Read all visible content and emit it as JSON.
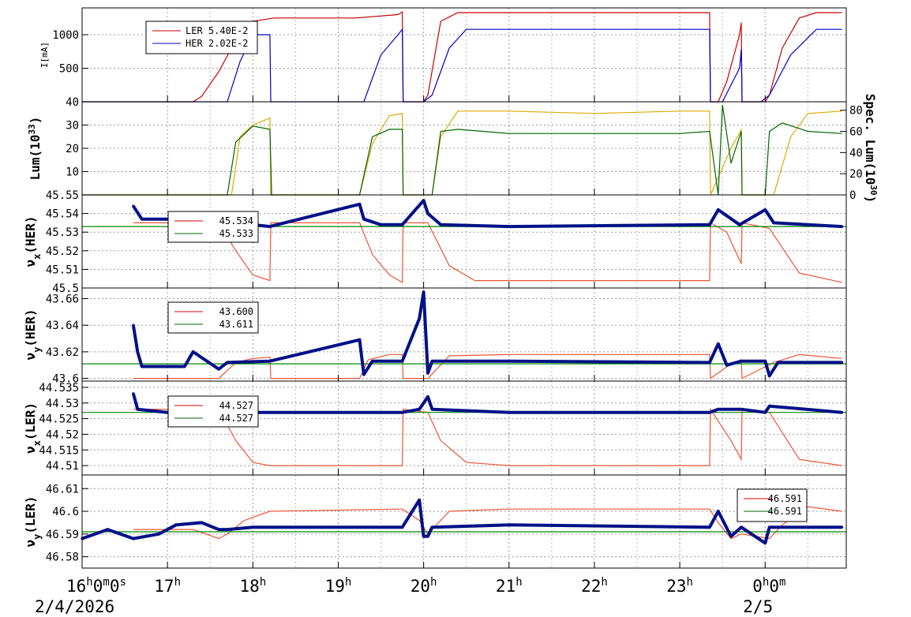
{
  "chart_data": {
    "type": "line",
    "x_axis": {
      "range_hours": [
        16.0,
        24.95
      ],
      "ticks": [
        {
          "h": 16,
          "label": "16h0m0s"
        },
        {
          "h": 17,
          "label": "17h"
        },
        {
          "h": 18,
          "label": "18h"
        },
        {
          "h": 19,
          "label": "19h"
        },
        {
          "h": 20,
          "label": "20h"
        },
        {
          "h": 21,
          "label": "21h"
        },
        {
          "h": 22,
          "label": "22h"
        },
        {
          "h": 23,
          "label": "23h"
        },
        {
          "h": 24,
          "label": "0h0m"
        }
      ],
      "date_labels": [
        {
          "h": 16,
          "label": "2/4/2026"
        },
        {
          "h": 24,
          "label": "2/5"
        }
      ]
    },
    "panels": [
      {
        "id": "current",
        "ylabel": "I[mA]",
        "ylim": [
          0,
          1400
        ],
        "yticks": [
          500,
          1000
        ],
        "legend": [
          {
            "label": "LER  5.40E-2",
            "color": "#cc0000"
          },
          {
            "label": "HER  2.02E-2",
            "color": "#0000cc"
          }
        ],
        "series": [
          {
            "name": "LER",
            "color": "#cc0000",
            "x": [
              16.0,
              16.6,
              17.3,
              17.4,
              17.6,
              17.75,
              18.0,
              18.25,
              19.2,
              19.7,
              19.75,
              19.76,
              19.95,
              20.0,
              20.05,
              20.2,
              20.4,
              21.0,
              22.0,
              23.0,
              23.35,
              23.36,
              23.45,
              23.55,
              23.7,
              23.72,
              23.73,
              23.95,
              24.0,
              24.05,
              24.2,
              24.4,
              24.6,
              24.9
            ],
            "values": [
              0,
              0,
              0,
              80,
              450,
              800,
              1200,
              1250,
              1250,
              1300,
              1340,
              0,
              0,
              0,
              100,
              1200,
              1330,
              1330,
              1330,
              1330,
              1330,
              0,
              0,
              300,
              1000,
              1180,
              0,
              0,
              0,
              100,
              800,
              1250,
              1330,
              1330
            ]
          },
          {
            "name": "HER",
            "color": "#0000cc",
            "x": [
              16.0,
              16.6,
              17.7,
              17.85,
              18.0,
              18.2,
              18.21,
              19.3,
              19.5,
              19.7,
              19.75,
              19.76,
              20.0,
              20.1,
              20.3,
              20.5,
              23.35,
              23.36,
              23.5,
              23.7,
              23.72,
              23.73,
              23.95,
              24.05,
              24.3,
              24.6,
              24.9
            ],
            "values": [
              0,
              0,
              0,
              600,
              1000,
              1000,
              0,
              0,
              700,
              1000,
              1080,
              0,
              0,
              100,
              800,
              1080,
              1080,
              0,
              0,
              500,
              780,
              0,
              0,
              100,
              700,
              1080,
              1080
            ]
          }
        ]
      },
      {
        "id": "lum",
        "ylabel": "Lum(10^33)",
        "ylabel_right": "Spec. Lum(10^30)",
        "ylim": [
          0,
          40
        ],
        "yticks": [
          10,
          20,
          30,
          40
        ],
        "ylim_right": [
          0,
          88
        ],
        "yticks_right": [
          0,
          20,
          40,
          60,
          80
        ],
        "series": [
          {
            "name": "Lum",
            "color": "#ddaa00",
            "x": [
              16.0,
              17.75,
              17.85,
              18.0,
              18.2,
              18.21,
              19.25,
              19.4,
              19.6,
              19.75,
              19.76,
              20.1,
              20.2,
              20.4,
              21.0,
              22.0,
              23.0,
              23.35,
              23.36,
              23.6,
              23.72,
              23.73,
              24.1,
              24.3,
              24.5,
              24.9
            ],
            "values": [
              0,
              0,
              25,
              30,
              33,
              0,
              0,
              22,
              34,
              35,
              0,
              0,
              25,
              36,
              36,
              35,
              36,
              36,
              0,
              20,
              28,
              0,
              0,
              25,
              35,
              36
            ]
          },
          {
            "name": "Spec. Lum",
            "color": "#006600",
            "axis": "right",
            "x": [
              16.0,
              17.7,
              17.8,
              18.0,
              18.2,
              18.22,
              19.25,
              19.4,
              19.6,
              19.75,
              19.76,
              20.1,
              20.2,
              20.4,
              21.0,
              22.0,
              23.0,
              23.35,
              23.45,
              23.5,
              23.6,
              23.72,
              23.73,
              24.0,
              24.05,
              24.2,
              24.5,
              24.9
            ],
            "values": [
              0,
              0,
              50,
              65,
              62,
              0,
              0,
              55,
              62,
              62,
              0,
              0,
              60,
              62,
              58,
              58,
              58,
              60,
              0,
              85,
              30,
              60,
              0,
              0,
              60,
              68,
              60,
              58
            ]
          }
        ]
      },
      {
        "id": "nux_her",
        "ylabel": "νx(HER)",
        "ylim": [
          45.5,
          45.55
        ],
        "yticks": [
          45.5,
          45.51,
          45.52,
          45.53,
          45.54,
          45.55
        ],
        "legend": [
          {
            "label": "45.534",
            "color": "#cc0000"
          },
          {
            "label": "45.533",
            "color": "#006600"
          }
        ],
        "series": [
          {
            "name": "set red",
            "color": "#ee5533",
            "x": [
              16.6,
              17.6,
              17.8,
              18.0,
              18.2,
              18.21,
              19.25,
              19.4,
              19.6,
              19.75,
              19.76,
              20.05,
              20.3,
              20.6,
              21.0,
              23.35,
              23.36,
              23.55,
              23.72,
              23.73,
              24.05,
              24.4,
              24.9
            ],
            "values": [
              45.535,
              45.535,
              45.52,
              45.507,
              45.504,
              45.535,
              45.535,
              45.518,
              45.507,
              45.503,
              45.535,
              45.535,
              45.512,
              45.504,
              45.504,
              45.504,
              45.535,
              45.53,
              45.513,
              45.535,
              45.532,
              45.508,
              45.503
            ]
          },
          {
            "name": "green",
            "color": "#008800",
            "x": [
              16.0,
              24.95
            ],
            "values": [
              45.533,
              45.533
            ]
          },
          {
            "name": "meas",
            "color": "#001188",
            "x": [
              16.6,
              16.7,
              17.6,
              18.0,
              18.2,
              19.25,
              19.3,
              19.5,
              19.75,
              20.0,
              20.05,
              20.2,
              21.0,
              23.35,
              23.45,
              23.7,
              24.0,
              24.1,
              24.9
            ],
            "values": [
              45.544,
              45.537,
              45.537,
              45.534,
              45.533,
              45.545,
              45.537,
              45.534,
              45.534,
              45.547,
              45.54,
              45.534,
              45.533,
              45.534,
              45.542,
              45.534,
              45.542,
              45.535,
              45.533
            ]
          }
        ]
      },
      {
        "id": "nuy_her",
        "ylabel": "νy(HER)",
        "ylim": [
          43.598,
          43.668
        ],
        "yticks": [
          43.6,
          43.62,
          43.64,
          43.66
        ],
        "legend": [
          {
            "label": "43.600",
            "color": "#cc0000"
          },
          {
            "label": "43.611",
            "color": "#006600"
          }
        ],
        "series": [
          {
            "name": "set red",
            "color": "#ee5533",
            "x": [
              16.6,
              17.6,
              17.8,
              18.0,
              18.2,
              18.21,
              19.25,
              19.35,
              19.6,
              19.75,
              19.76,
              20.05,
              20.3,
              21.0,
              23.35,
              23.36,
              23.6,
              23.72,
              23.73,
              24.1,
              24.4,
              24.9
            ],
            "values": [
              43.6,
              43.6,
              43.612,
              43.615,
              43.616,
              43.6,
              43.6,
              43.614,
              43.618,
              43.618,
              43.6,
              43.6,
              43.617,
              43.618,
              43.618,
              43.6,
              43.611,
              43.614,
              43.6,
              43.612,
              43.618,
              43.615
            ]
          },
          {
            "name": "green",
            "color": "#008800",
            "x": [
              16.0,
              24.95
            ],
            "values": [
              43.611,
              43.611
            ]
          },
          {
            "name": "meas",
            "color": "#001188",
            "x": [
              16.6,
              16.65,
              16.7,
              17.2,
              17.3,
              17.6,
              17.7,
              18.2,
              19.25,
              19.3,
              19.4,
              19.75,
              19.95,
              20.0,
              20.05,
              20.1,
              21.0,
              23.35,
              23.45,
              23.55,
              23.72,
              24.0,
              24.05,
              24.15,
              24.9
            ],
            "values": [
              43.64,
              43.62,
              43.609,
              43.609,
              43.62,
              43.607,
              43.612,
              43.613,
              43.629,
              43.603,
              43.613,
              43.613,
              43.645,
              43.665,
              43.604,
              43.613,
              43.613,
              43.612,
              43.626,
              43.61,
              43.613,
              43.613,
              43.602,
              43.612,
              43.612
            ]
          }
        ]
      },
      {
        "id": "nux_ler",
        "ylabel": "νx(LER)",
        "ylim": [
          44.507,
          44.537
        ],
        "yticks": [
          44.51,
          44.515,
          44.52,
          44.525,
          44.53,
          44.535
        ],
        "legend": [
          {
            "label": "44.527",
            "color": "#cc0000"
          },
          {
            "label": "44.527",
            "color": "#006600"
          }
        ],
        "series": [
          {
            "name": "set red",
            "color": "#ee5533",
            "x": [
              16.6,
              17.6,
              17.8,
              18.0,
              18.2,
              19.75,
              19.76,
              20.05,
              20.2,
              20.5,
              21.0,
              23.35,
              23.36,
              23.6,
              23.72,
              23.73,
              24.05,
              24.4,
              24.9
            ],
            "values": [
              44.528,
              44.528,
              44.518,
              44.511,
              44.51,
              44.51,
              44.528,
              44.527,
              44.518,
              44.511,
              44.51,
              44.51,
              44.528,
              44.518,
              44.512,
              44.528,
              44.527,
              44.512,
              44.51
            ]
          },
          {
            "name": "green",
            "color": "#008800",
            "x": [
              16.0,
              24.95
            ],
            "values": [
              44.527,
              44.527
            ]
          },
          {
            "name": "meas",
            "color": "#001188",
            "x": [
              16.6,
              16.65,
              17.0,
              17.2,
              17.4,
              17.6,
              18.0,
              19.75,
              19.95,
              20.05,
              20.1,
              21.0,
              23.35,
              23.45,
              23.72,
              24.0,
              24.05,
              24.9
            ],
            "values": [
              44.533,
              44.528,
              44.527,
              44.525,
              44.527,
              44.528,
              44.527,
              44.527,
              44.528,
              44.532,
              44.528,
              44.527,
              44.527,
              44.528,
              44.528,
              44.527,
              44.529,
              44.527
            ]
          }
        ]
      },
      {
        "id": "nuy_ler",
        "ylabel": "νy(LER)",
        "ylim": [
          46.575,
          46.616
        ],
        "yticks": [
          46.58,
          46.59,
          46.6,
          46.61
        ],
        "legend": [
          {
            "label": "46.591",
            "color": "#cc0000"
          },
          {
            "label": "46.591",
            "color": "#006600"
          }
        ],
        "series": [
          {
            "name": "set red",
            "color": "#ee5533",
            "x": [
              16.6,
              17.3,
              17.6,
              17.7,
              17.9,
              18.2,
              19.75,
              19.95,
              20.05,
              20.3,
              21.0,
              23.35,
              23.45,
              23.6,
              23.72,
              24.05,
              24.2,
              24.5,
              24.9
            ],
            "values": [
              46.592,
              46.592,
              46.588,
              46.59,
              46.596,
              46.6,
              46.601,
              46.596,
              46.59,
              46.6,
              46.601,
              46.601,
              46.595,
              46.588,
              46.59,
              46.588,
              46.594,
              46.602,
              46.6
            ]
          },
          {
            "name": "green",
            "color": "#008800",
            "x": [
              16.0,
              24.95
            ],
            "values": [
              46.591,
              46.591
            ]
          },
          {
            "name": "meas",
            "color": "#001188",
            "x": [
              16.0,
              16.3,
              16.6,
              16.9,
              17.1,
              17.4,
              17.6,
              17.7,
              18.0,
              19.75,
              19.95,
              20.0,
              20.05,
              20.1,
              21.0,
              23.35,
              23.45,
              23.6,
              23.72,
              24.0,
              24.05,
              24.15,
              24.9
            ],
            "values": [
              46.588,
              46.592,
              46.588,
              46.59,
              46.594,
              46.595,
              46.592,
              46.592,
              46.593,
              46.593,
              46.605,
              46.589,
              46.589,
              46.593,
              46.594,
              46.593,
              46.6,
              46.589,
              46.593,
              46.586,
              46.593,
              46.593,
              46.593
            ]
          }
        ]
      }
    ]
  }
}
